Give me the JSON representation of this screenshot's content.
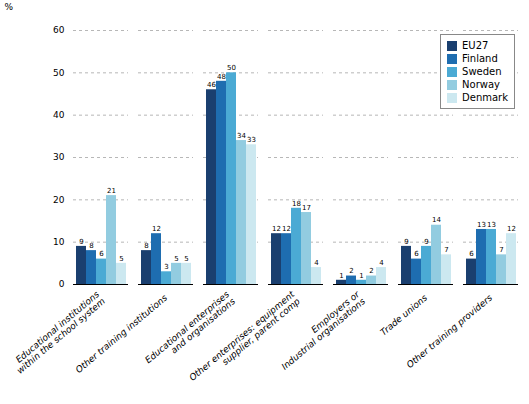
{
  "chart_data": {
    "type": "bar",
    "ylabel": "%",
    "categories": [
      "Educational institutions\nwithin the school system",
      "Other training institutions",
      "Educational enterprises\nand organisations",
      "Other enterprises: equipment\nsupplier, parent comp",
      "Employers or\nIndustrial organisations",
      "Trade unions",
      "Other training providers"
    ],
    "series": [
      {
        "name": "EU27",
        "color": "#1a3f6f",
        "values": [
          9,
          8,
          46,
          12,
          1,
          9,
          6
        ]
      },
      {
        "name": "Finland",
        "color": "#1e6db0",
        "values": [
          8,
          12,
          48,
          12,
          2,
          6,
          13
        ]
      },
      {
        "name": "Sweden",
        "color": "#4baad4",
        "values": [
          6,
          3,
          50,
          18,
          1,
          9,
          13
        ]
      },
      {
        "name": "Norway",
        "color": "#92cce0",
        "values": [
          21,
          5,
          34,
          17,
          2,
          14,
          7
        ]
      },
      {
        "name": "Denmark",
        "color": "#cce8f0",
        "values": [
          5,
          5,
          33,
          4,
          4,
          7,
          12
        ]
      }
    ],
    "ylim": [
      0,
      60
    ],
    "yticks": [
      0,
      10,
      20,
      30,
      40,
      50,
      60
    ],
    "grid": true,
    "legend": "upper right",
    "data_labels": true
  }
}
